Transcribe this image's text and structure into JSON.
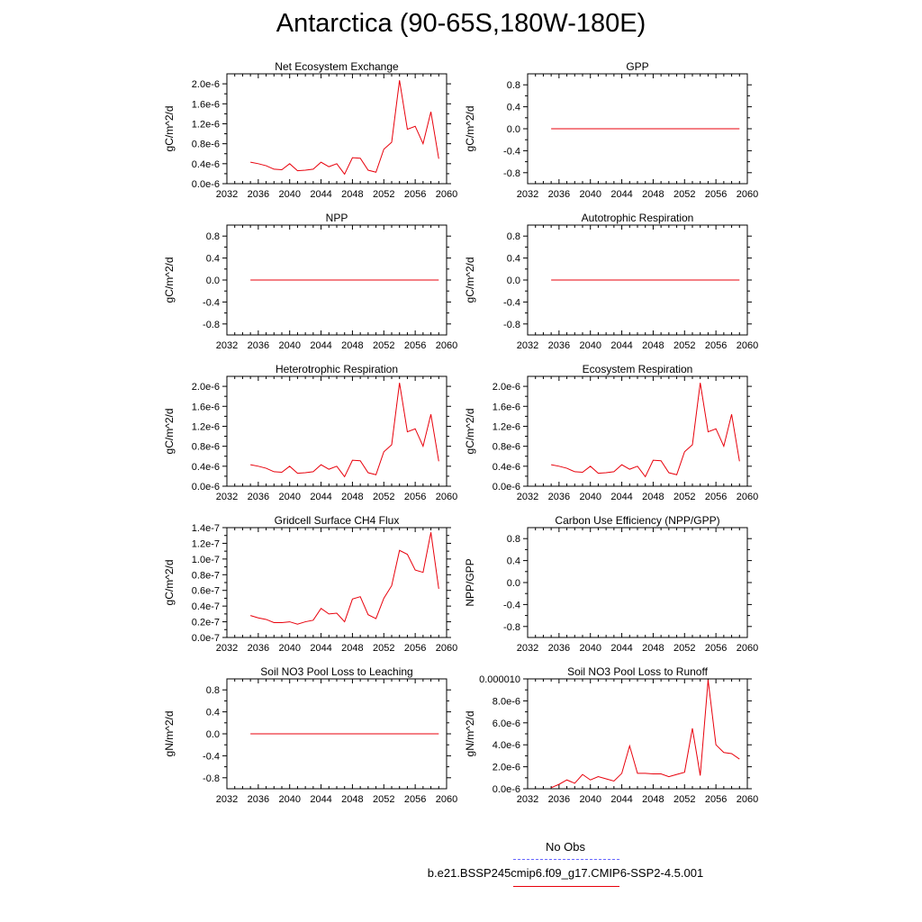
{
  "title": "Antarctica (90-65S,180W-180E)",
  "legend": {
    "items": [
      {
        "label": "No Obs",
        "color": "#6666ff",
        "dash": true
      },
      {
        "label": "b.e21.BSSP245cmip6.f09_g17.CMIP6-SSP2-4.5.001",
        "color": "#e8000b",
        "dash": false
      }
    ]
  },
  "chart_data": [
    {
      "type": "line",
      "title": "Net Ecosystem Exchange",
      "ylabel": "gC/m^2/d",
      "xlim": [
        2032,
        2060
      ],
      "xticks": [
        "2032",
        "2036",
        "2040",
        "2044",
        "2048",
        "2052",
        "2056",
        "2060"
      ],
      "ylim": [
        0,
        2.2e-06
      ],
      "yticks": [
        0,
        4e-07,
        8e-07,
        1.2e-06,
        1.6e-06,
        2e-06
      ],
      "yticklabels": [
        "0.0e-6",
        "0.4e-6",
        "0.8e-6",
        "1.2e-6",
        "1.6e-6",
        "2.0e-6"
      ],
      "series": [
        {
          "color": "#e8000b",
          "x": [
            2035,
            2036,
            2037,
            2038,
            2039,
            2040,
            2041,
            2042,
            2043,
            2044,
            2045,
            2046,
            2047,
            2048,
            2049,
            2050,
            2051,
            2052,
            2053,
            2054,
            2055,
            2056,
            2057,
            2058,
            2059
          ],
          "y": [
            4.3e-07,
            4e-07,
            3.6e-07,
            2.9e-07,
            2.8e-07,
            4e-07,
            2.6e-07,
            2.7e-07,
            2.9e-07,
            4.3e-07,
            3.4e-07,
            4e-07,
            1.9e-07,
            5.2e-07,
            5.1e-07,
            2.7e-07,
            2.3e-07,
            6.9e-07,
            8.3e-07,
            2.07e-06,
            1.09e-06,
            1.15e-06,
            8e-07,
            1.44e-06,
            5e-07
          ]
        }
      ]
    },
    {
      "type": "line",
      "title": "GPP",
      "ylabel": "gC/m^2/d",
      "xlim": [
        2032,
        2060
      ],
      "xticks": [
        "2032",
        "2036",
        "2040",
        "2044",
        "2048",
        "2052",
        "2056",
        "2060"
      ],
      "ylim": [
        -1,
        1
      ],
      "yticks": [
        -0.8,
        -0.4,
        0,
        0.4,
        0.8
      ],
      "yticklabels": [
        "-0.8",
        "-0.4",
        "0.0",
        "0.4",
        "0.8"
      ],
      "series": [
        {
          "color": "#e8000b",
          "x": [
            2035,
            2059
          ],
          "y": [
            0,
            0
          ]
        }
      ]
    },
    {
      "type": "line",
      "title": "NPP",
      "ylabel": "gC/m^2/d",
      "xlim": [
        2032,
        2060
      ],
      "xticks": [
        "2032",
        "2036",
        "2040",
        "2044",
        "2048",
        "2052",
        "2056",
        "2060"
      ],
      "ylim": [
        -1,
        1
      ],
      "yticks": [
        -0.8,
        -0.4,
        0,
        0.4,
        0.8
      ],
      "yticklabels": [
        "-0.8",
        "-0.4",
        "0.0",
        "0.4",
        "0.8"
      ],
      "series": [
        {
          "color": "#e8000b",
          "x": [
            2035,
            2059
          ],
          "y": [
            0,
            0
          ]
        }
      ]
    },
    {
      "type": "line",
      "title": "Autotrophic Respiration",
      "ylabel": "gC/m^2/d",
      "xlim": [
        2032,
        2060
      ],
      "xticks": [
        "2032",
        "2036",
        "2040",
        "2044",
        "2048",
        "2052",
        "2056",
        "2060"
      ],
      "ylim": [
        -1,
        1
      ],
      "yticks": [
        -0.8,
        -0.4,
        0,
        0.4,
        0.8
      ],
      "yticklabels": [
        "-0.8",
        "-0.4",
        "0.0",
        "0.4",
        "0.8"
      ],
      "series": [
        {
          "color": "#e8000b",
          "x": [
            2035,
            2059
          ],
          "y": [
            0,
            0
          ]
        }
      ]
    },
    {
      "type": "line",
      "title": "Heterotrophic Respiration",
      "ylabel": "gC/m^2/d",
      "xlim": [
        2032,
        2060
      ],
      "xticks": [
        "2032",
        "2036",
        "2040",
        "2044",
        "2048",
        "2052",
        "2056",
        "2060"
      ],
      "ylim": [
        0,
        2.2e-06
      ],
      "yticks": [
        0,
        4e-07,
        8e-07,
        1.2e-06,
        1.6e-06,
        2e-06
      ],
      "yticklabels": [
        "0.0e-6",
        "0.4e-6",
        "0.8e-6",
        "1.2e-6",
        "1.6e-6",
        "2.0e-6"
      ],
      "series": [
        {
          "color": "#e8000b",
          "x": [
            2035,
            2036,
            2037,
            2038,
            2039,
            2040,
            2041,
            2042,
            2043,
            2044,
            2045,
            2046,
            2047,
            2048,
            2049,
            2050,
            2051,
            2052,
            2053,
            2054,
            2055,
            2056,
            2057,
            2058,
            2059
          ],
          "y": [
            4.3e-07,
            4e-07,
            3.6e-07,
            2.9e-07,
            2.8e-07,
            4e-07,
            2.6e-07,
            2.7e-07,
            2.9e-07,
            4.3e-07,
            3.4e-07,
            4e-07,
            1.9e-07,
            5.2e-07,
            5.1e-07,
            2.7e-07,
            2.3e-07,
            6.9e-07,
            8.3e-07,
            2.07e-06,
            1.09e-06,
            1.15e-06,
            8e-07,
            1.44e-06,
            5e-07
          ]
        }
      ]
    },
    {
      "type": "line",
      "title": "Ecosystem Respiration",
      "ylabel": "gC/m^2/d",
      "xlim": [
        2032,
        2060
      ],
      "xticks": [
        "2032",
        "2036",
        "2040",
        "2044",
        "2048",
        "2052",
        "2056",
        "2060"
      ],
      "ylim": [
        0,
        2.2e-06
      ],
      "yticks": [
        0,
        4e-07,
        8e-07,
        1.2e-06,
        1.6e-06,
        2e-06
      ],
      "yticklabels": [
        "0.0e-6",
        "0.4e-6",
        "0.8e-6",
        "1.2e-6",
        "1.6e-6",
        "2.0e-6"
      ],
      "series": [
        {
          "color": "#e8000b",
          "x": [
            2035,
            2036,
            2037,
            2038,
            2039,
            2040,
            2041,
            2042,
            2043,
            2044,
            2045,
            2046,
            2047,
            2048,
            2049,
            2050,
            2051,
            2052,
            2053,
            2054,
            2055,
            2056,
            2057,
            2058,
            2059
          ],
          "y": [
            4.3e-07,
            4e-07,
            3.6e-07,
            2.9e-07,
            2.8e-07,
            4e-07,
            2.6e-07,
            2.7e-07,
            2.9e-07,
            4.3e-07,
            3.4e-07,
            4e-07,
            1.9e-07,
            5.2e-07,
            5.1e-07,
            2.7e-07,
            2.3e-07,
            6.9e-07,
            8.3e-07,
            2.07e-06,
            1.09e-06,
            1.15e-06,
            8e-07,
            1.44e-06,
            5e-07
          ]
        }
      ]
    },
    {
      "type": "line",
      "title": "Gridcell Surface CH4 Flux",
      "ylabel": "gC/m^2/d",
      "xlim": [
        2032,
        2060
      ],
      "xticks": [
        "2032",
        "2036",
        "2040",
        "2044",
        "2048",
        "2052",
        "2056",
        "2060"
      ],
      "ylim": [
        0,
        1.4e-07
      ],
      "yticks": [
        0,
        2e-08,
        4e-08,
        6e-08,
        8e-08,
        1e-07,
        1.2e-07,
        1.4e-07
      ],
      "yticklabels": [
        "0.0e-7",
        "0.2e-7",
        "0.4e-7",
        "0.6e-7",
        "0.8e-7",
        "1.0e-7",
        "1.2e-7",
        "1.4e-7"
      ],
      "series": [
        {
          "color": "#e8000b",
          "x": [
            2035,
            2036,
            2037,
            2038,
            2039,
            2040,
            2041,
            2042,
            2043,
            2044,
            2045,
            2046,
            2047,
            2048,
            2049,
            2050,
            2051,
            2052,
            2053,
            2054,
            2055,
            2056,
            2057,
            2058,
            2059
          ],
          "y": [
            2.8e-08,
            2.5e-08,
            2.3e-08,
            1.9e-08,
            1.9e-08,
            2e-08,
            1.7e-08,
            2e-08,
            2.2e-08,
            3.7e-08,
            3e-08,
            3.1e-08,
            2e-08,
            4.9e-08,
            5.2e-08,
            2.9e-08,
            2.4e-08,
            5e-08,
            6.6e-08,
            1.11e-07,
            1.06e-07,
            8.6e-08,
            8.3e-08,
            1.34e-07,
            6.2e-08
          ]
        }
      ]
    },
    {
      "type": "line",
      "title": "Carbon Use Efficiency (NPP/GPP)",
      "ylabel": "NPP/GPP",
      "xlim": [
        2032,
        2060
      ],
      "xticks": [
        "2032",
        "2036",
        "2040",
        "2044",
        "2048",
        "2052",
        "2056",
        "2060"
      ],
      "ylim": [
        -1,
        1
      ],
      "yticks": [
        -0.8,
        -0.4,
        0,
        0.4,
        0.8
      ],
      "yticklabels": [
        "-0.8",
        "-0.4",
        "0.0",
        "0.4",
        "0.8"
      ],
      "series": []
    },
    {
      "type": "line",
      "title": "Soil NO3 Pool Loss to Leaching",
      "ylabel": "gN/m^2/d",
      "xlim": [
        2032,
        2060
      ],
      "xticks": [
        "2032",
        "2036",
        "2040",
        "2044",
        "2048",
        "2052",
        "2056",
        "2060"
      ],
      "ylim": [
        -1,
        1
      ],
      "yticks": [
        -0.8,
        -0.4,
        0,
        0.4,
        0.8
      ],
      "yticklabels": [
        "-0.8",
        "-0.4",
        "0.0",
        "0.4",
        "0.8"
      ],
      "series": [
        {
          "color": "#e8000b",
          "x": [
            2035,
            2059
          ],
          "y": [
            0,
            0
          ]
        }
      ]
    },
    {
      "type": "line",
      "title": "Soil NO3 Pool Loss to Runoff",
      "ylabel": "gN/m^2/d",
      "xlim": [
        2032,
        2060
      ],
      "xticks": [
        "2032",
        "2036",
        "2040",
        "2044",
        "2048",
        "2052",
        "2056",
        "2060"
      ],
      "ylim": [
        0,
        1e-05
      ],
      "yticks": [
        0,
        2e-06,
        4e-06,
        6e-06,
        8e-06,
        1e-05
      ],
      "yticklabels": [
        "0.0e-6",
        "2.0e-6",
        "4.0e-6",
        "6.0e-6",
        "8.0e-6",
        "0.000010"
      ],
      "series": [
        {
          "color": "#e8000b",
          "x": [
            2035,
            2036,
            2037,
            2038,
            2039,
            2040,
            2041,
            2042,
            2043,
            2044,
            2045,
            2046,
            2047,
            2048,
            2049,
            2050,
            2051,
            2052,
            2053,
            2054,
            2055,
            2056,
            2057,
            2058,
            2059
          ],
          "y": [
            1e-07,
            4e-07,
            8e-07,
            5e-07,
            1.3e-06,
            8e-07,
            1.1e-06,
            9e-07,
            7e-07,
            1.4e-06,
            3.9e-06,
            1.4e-06,
            1.4e-06,
            1.35e-06,
            1.35e-06,
            1.1e-06,
            1.3e-06,
            1.5e-06,
            5.5e-06,
            1.2e-06,
            9.9e-06,
            4e-06,
            3.3e-06,
            3.2e-06,
            2.7e-06
          ]
        }
      ]
    }
  ]
}
